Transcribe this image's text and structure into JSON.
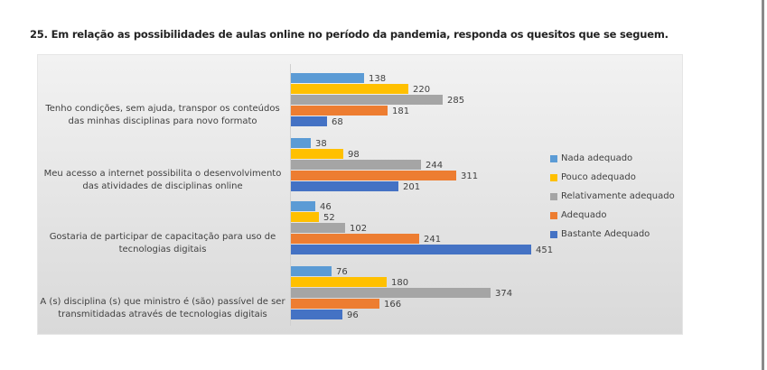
{
  "title": "25. Em relação as possibilidades de aulas online no período da pandemia, responda os quesitos que se seguem.",
  "chart_data": {
    "type": "bar",
    "orientation": "horizontal",
    "title": "25. Em relação as possibilidades de aulas online no período da pandemia, responda os quesitos que se seguem.",
    "xlabel": "",
    "ylabel": "",
    "xlim": [
      0,
      500
    ],
    "grid": false,
    "legend_position": "right",
    "categories": [
      "Tenho condições, sem ajuda, transpor os conteúdos das minhas disciplinas para novo formato",
      "Meu acesso a internet possibilita o desenvolvimento das atividades de disciplinas online",
      "Gostaria de participar de capacitação para uso de tecnologias digitais",
      "A (s) disciplina (s) que ministro é (são) passível de ser transmitidadas através de tecnologias digitais"
    ],
    "category_lines": [
      [
        "Tenho condições, sem ajuda, transpor os conteúdos",
        "das minhas disciplinas para novo formato"
      ],
      [
        "Meu acesso a internet possibilita o desenvolvimento",
        "das atividades de disciplinas online"
      ],
      [
        "Gostaria de participar de capacitação para uso de",
        "tecnologias digitais"
      ],
      [
        "A (s) disciplina (s) que ministro é (são) passível de ser",
        "transmitidadas através de tecnologias digitais"
      ]
    ],
    "series": [
      {
        "name": "Nada adequado",
        "color": "#5b9bd5",
        "values": [
          138,
          38,
          46,
          76
        ]
      },
      {
        "name": "Pouco adequado",
        "color": "#ffc000",
        "values": [
          220,
          98,
          52,
          180
        ]
      },
      {
        "name": "Relativamente adequado",
        "color": "#a5a5a5",
        "values": [
          285,
          244,
          102,
          374
        ]
      },
      {
        "name": "Adequado",
        "color": "#ed7d31",
        "values": [
          181,
          311,
          241,
          166
        ]
      },
      {
        "name": "Bastante Adequado",
        "color": "#4472c4",
        "values": [
          68,
          201,
          451,
          96
        ]
      }
    ]
  }
}
